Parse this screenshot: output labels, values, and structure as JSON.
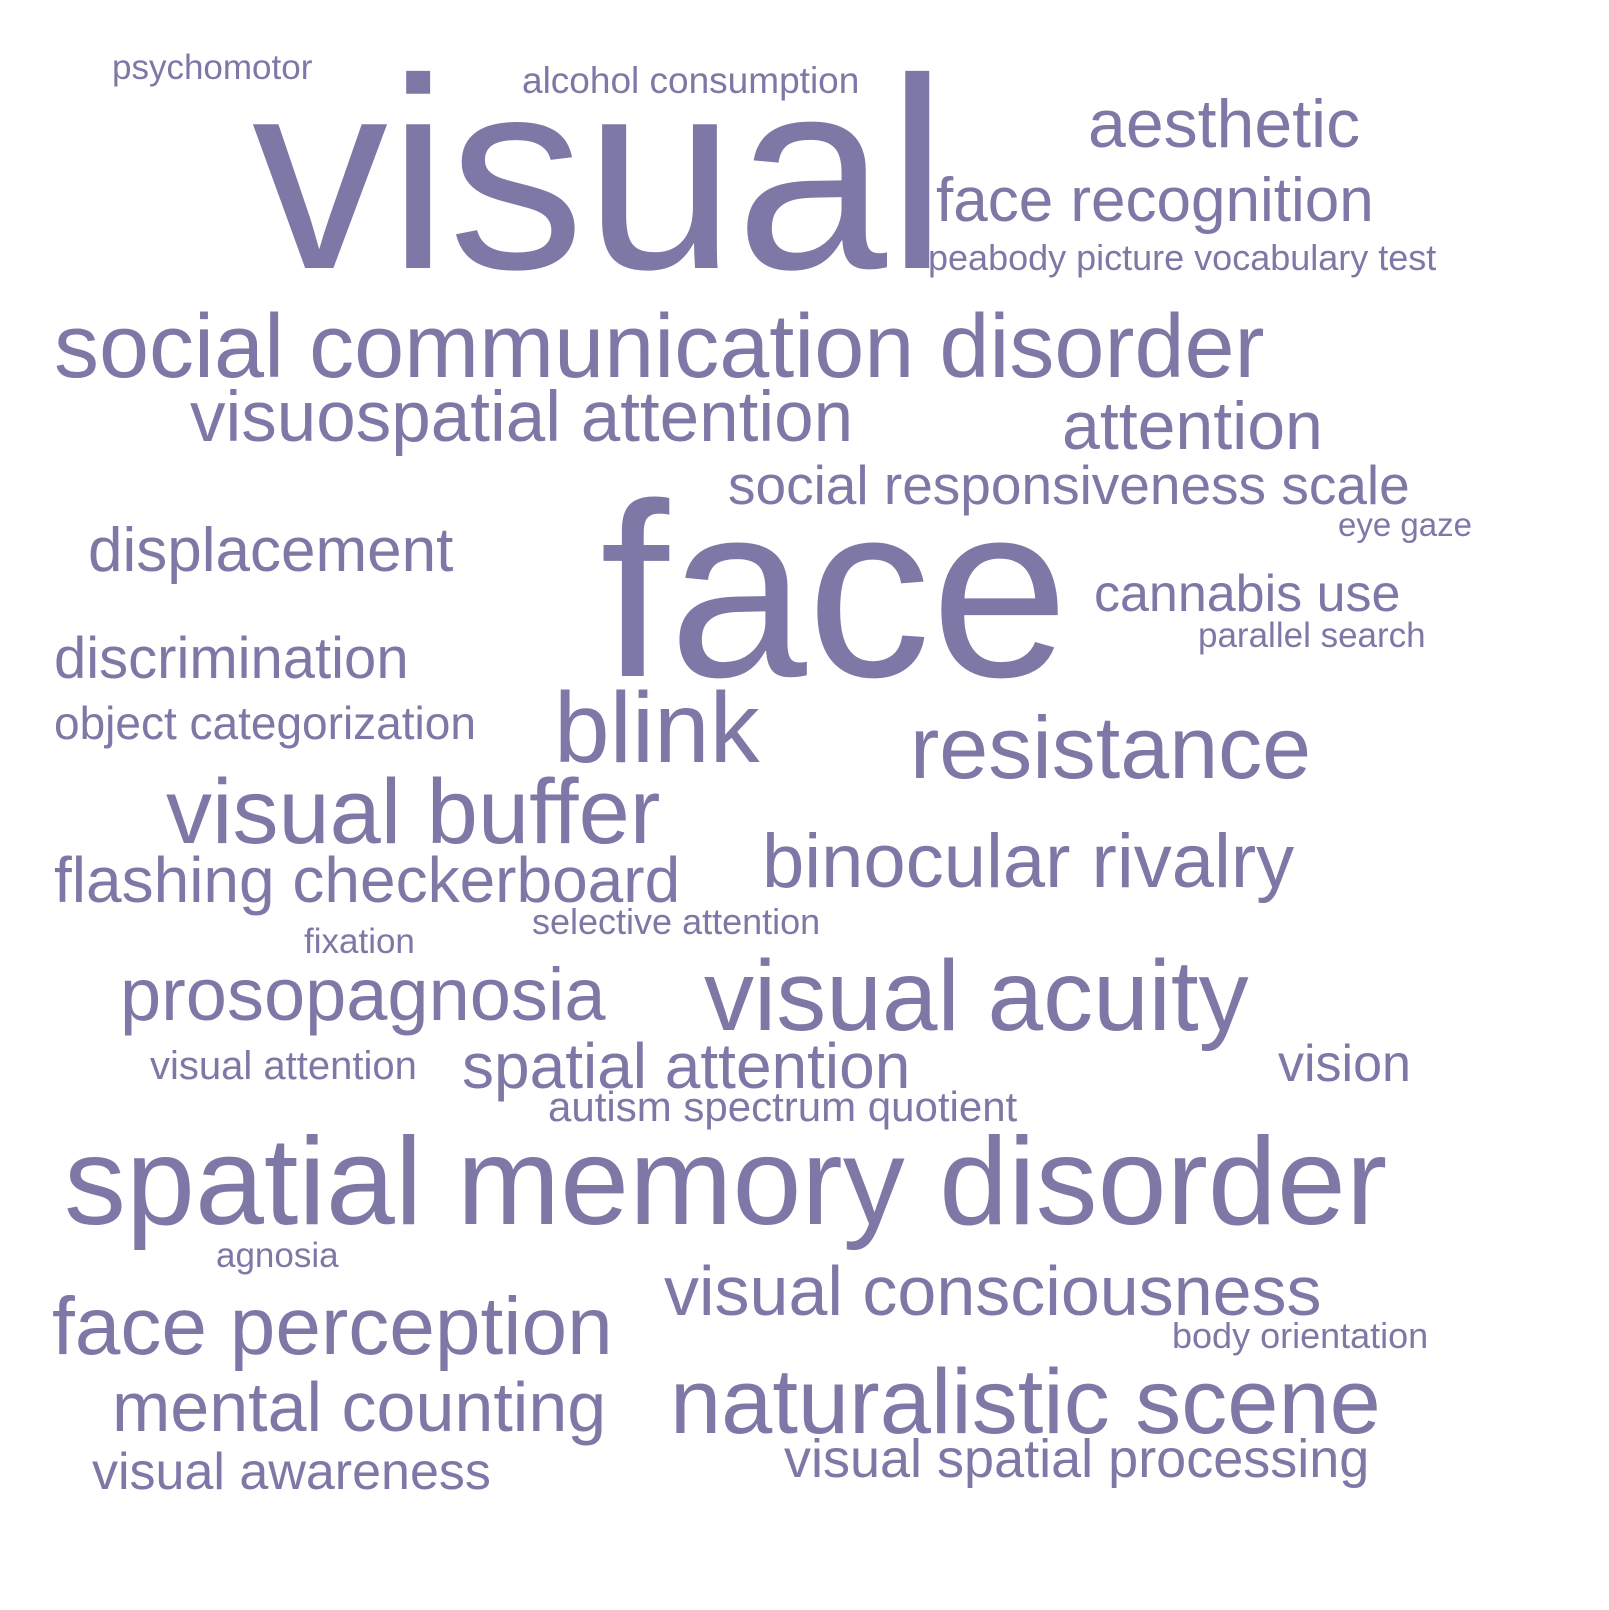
{
  "word_color": "#7e78a6",
  "background": "#ffffff",
  "words": {
    "psychomotor": "psychomotor",
    "alcohol_consumption": "alcohol consumption",
    "visual": "visual",
    "aesthetic": "aesthetic",
    "face_recognition": "face recognition",
    "peabody": "peabody picture vocabulary test",
    "social_communication_disorder": "social communication disorder",
    "visuospatial_attention": "visuospatial attention",
    "attention": "attention",
    "social_responsiveness_scale": "social responsiveness scale",
    "eye_gaze": "eye gaze",
    "displacement": "displacement",
    "face": "face",
    "cannabis_use": "cannabis use",
    "parallel_search": "parallel search",
    "discrimination": "discrimination",
    "object_categorization": "object categorization",
    "blink": "blink",
    "resistance": "resistance",
    "visual_buffer": "visual buffer",
    "flashing_checkerboard": "flashing checkerboard",
    "binocular_rivalry": "binocular rivalry",
    "selective_attention": "selective attention",
    "fixation": "fixation",
    "prosopagnosia": "prosopagnosia",
    "visual_acuity": "visual acuity",
    "visual_attention": "visual attention",
    "spatial_attention": "spatial attention",
    "vision": "vision",
    "autism_spectrum_quotient": "autism spectrum quotient",
    "spatial_memory_disorder": "spatial memory disorder",
    "agnosia": "agnosia",
    "visual_consciousness": "visual consciousness",
    "face_perception": "face perception",
    "body_orientation": "body orientation",
    "mental_counting": "mental counting",
    "naturalistic_scene": "naturalistic scene",
    "visual_awareness": "visual awareness",
    "visual_spatial_processing": "visual spatial processing"
  }
}
